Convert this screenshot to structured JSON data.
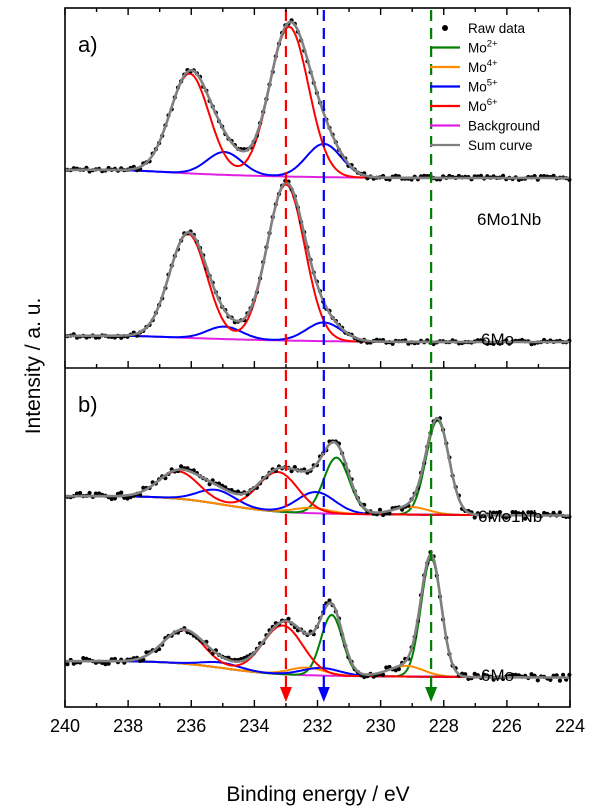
{
  "chart_data": {
    "type": "line",
    "xlabel": "Binding energy / eV",
    "ylabel": "Intensity / a. u.",
    "xlim": [
      240,
      224
    ],
    "x_reversed": true,
    "x_ticks": [
      240,
      238,
      236,
      234,
      232,
      230,
      228,
      226,
      224
    ],
    "grid": false,
    "legend_placement": "top-right",
    "legend": [
      {
        "name": "Raw data",
        "sup": "",
        "color": "#000000",
        "kind": "dot"
      },
      {
        "name": "Mo",
        "sup": "2+",
        "color": "#008000",
        "kind": "line"
      },
      {
        "name": "Mo",
        "sup": "4+",
        "color": "#FF8C00",
        "kind": "line"
      },
      {
        "name": "Mo",
        "sup": "5+",
        "color": "#0000FF",
        "kind": "line"
      },
      {
        "name": "Mo",
        "sup": "6+",
        "color": "#FF0000",
        "kind": "line"
      },
      {
        "name": "Background",
        "sup": "",
        "color": "#E020E0",
        "kind": "line"
      },
      {
        "name": "Sum curve",
        "sup": "",
        "color": "#808080",
        "kind": "line"
      }
    ],
    "reference_lines": [
      {
        "x": 233.0,
        "color": "#FF0000",
        "style": "dashed",
        "arrow": true
      },
      {
        "x": 231.8,
        "color": "#0000FF",
        "style": "dashed",
        "arrow": true
      },
      {
        "x": 228.4,
        "color": "#008000",
        "style": "dashed",
        "arrow": true
      }
    ],
    "panels": [
      {
        "label": "a)",
        "spectra": [
          {
            "sample": "6Mo1Nb",
            "components": [
              {
                "state": "Mo5+",
                "color": "#0000FF",
                "peaks": [
                  {
                    "center": 231.8,
                    "fwhm": 1.3,
                    "height": 0.16
                  },
                  {
                    "center": 234.95,
                    "fwhm": 1.3,
                    "height": 0.11
                  }
                ]
              },
              {
                "state": "Mo6+",
                "color": "#FF0000",
                "peaks": [
                  {
                    "center": 232.9,
                    "fwhm": 1.45,
                    "height": 0.72
                  },
                  {
                    "center": 236.05,
                    "fwhm": 1.45,
                    "height": 0.48
                  }
                ]
              }
            ]
          },
          {
            "sample": "6Mo",
            "components": [
              {
                "state": "Mo5+",
                "color": "#0000FF",
                "peaks": [
                  {
                    "center": 231.8,
                    "fwhm": 1.3,
                    "height": 0.09
                  },
                  {
                    "center": 234.95,
                    "fwhm": 1.3,
                    "height": 0.06
                  }
                ]
              },
              {
                "state": "Mo6+",
                "color": "#FF0000",
                "peaks": [
                  {
                    "center": 233.0,
                    "fwhm": 1.4,
                    "height": 0.75
                  },
                  {
                    "center": 236.1,
                    "fwhm": 1.4,
                    "height": 0.5
                  }
                ]
              }
            ]
          }
        ]
      },
      {
        "label": "b)",
        "spectra": [
          {
            "sample": "6Mo1Nb",
            "components": [
              {
                "state": "Mo2+",
                "color": "#008000",
                "peaks": [
                  {
                    "center": 228.2,
                    "fwhm": 0.85,
                    "height": 0.62
                  },
                  {
                    "center": 231.4,
                    "fwhm": 0.95,
                    "height": 0.37
                  }
                ]
              },
              {
                "state": "Mo4+",
                "color": "#FF8C00",
                "peaks": [
                  {
                    "center": 229.05,
                    "fwhm": 1.3,
                    "height": 0.05
                  },
                  {
                    "center": 232.2,
                    "fwhm": 1.3,
                    "height": 0.035
                  }
                ]
              },
              {
                "state": "Mo5+",
                "color": "#0000FF",
                "peaks": [
                  {
                    "center": 232.05,
                    "fwhm": 1.4,
                    "height": 0.14
                  },
                  {
                    "center": 235.2,
                    "fwhm": 1.4,
                    "height": 0.09
                  }
                ]
              },
              {
                "state": "Mo6+",
                "color": "#FF0000",
                "peaks": [
                  {
                    "center": 233.25,
                    "fwhm": 1.5,
                    "height": 0.26
                  },
                  {
                    "center": 236.4,
                    "fwhm": 1.5,
                    "height": 0.18
                  }
                ]
              }
            ]
          },
          {
            "sample": "6Mo",
            "components": [
              {
                "state": "Mo2+",
                "color": "#008000",
                "peaks": [
                  {
                    "center": 228.4,
                    "fwhm": 0.75,
                    "height": 0.78
                  },
                  {
                    "center": 231.55,
                    "fwhm": 0.8,
                    "height": 0.4
                  }
                ]
              },
              {
                "state": "Mo4+",
                "color": "#FF8C00",
                "peaks": [
                  {
                    "center": 229.2,
                    "fwhm": 1.3,
                    "height": 0.07
                  },
                  {
                    "center": 232.35,
                    "fwhm": 1.3,
                    "height": 0.05
                  }
                ]
              },
              {
                "state": "Mo5+",
                "color": "#0000FF",
                "peaks": [
                  {
                    "center": 231.9,
                    "fwhm": 1.4,
                    "height": 0.05
                  },
                  {
                    "center": 235.05,
                    "fwhm": 1.4,
                    "height": 0.035
                  }
                ]
              },
              {
                "state": "Mo6+",
                "color": "#FF0000",
                "peaks": [
                  {
                    "center": 233.1,
                    "fwhm": 1.5,
                    "height": 0.32
                  },
                  {
                    "center": 236.25,
                    "fwhm": 1.5,
                    "height": 0.22
                  }
                ]
              }
            ]
          }
        ]
      }
    ]
  }
}
